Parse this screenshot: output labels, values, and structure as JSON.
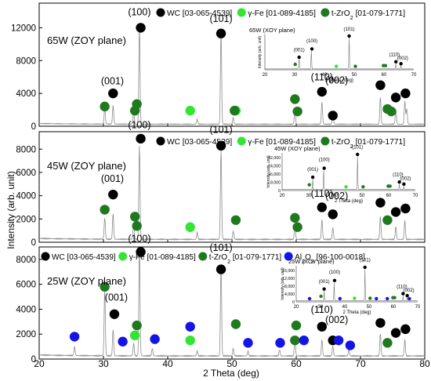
{
  "figure": {
    "ylabel": "Intensity (arb. unit)",
    "xlabel": "2 Theta (deg)",
    "xticks": [
      "20",
      "30",
      "40",
      "50",
      "60",
      "70",
      "80"
    ]
  },
  "colors": {
    "wc": "#000000",
    "fe": "#33e533",
    "zro2": "#1f7a1f",
    "al2o3": "#1414e6",
    "trace": "#8c8c8c",
    "axis": "#000000"
  },
  "chart_data": [
    {
      "type": "line",
      "title": "65W (ZOY plane)",
      "xlabel": "2 Theta (deg)",
      "ylabel": "Intensity (arb. unit)",
      "xlim": [
        20,
        80
      ],
      "ylim": [
        0,
        15000
      ],
      "yticks": [
        "0",
        "4000",
        "8000",
        "12000"
      ],
      "legend": [
        {
          "marker": "wc",
          "text": "WC [03-065-4539]"
        },
        {
          "marker": "fe",
          "text": "γ-Fe [01-089-4185]"
        },
        {
          "marker": "zro2",
          "text": "t-ZrO2 [01-079-1771]"
        }
      ],
      "peak_labels": [
        {
          "text": "(100)",
          "x": 35.6,
          "y": 13500
        },
        {
          "text": "(101)",
          "x": 48.3,
          "y": 12700
        },
        {
          "text": "(001)",
          "x": 31.4,
          "y": 5100
        },
        {
          "text": "(110)",
          "x": 64.0,
          "y": 5600
        },
        {
          "text": "(002)",
          "x": 66.3,
          "y": 5200
        }
      ],
      "series": [
        {
          "type": "pattern",
          "peaks": [
            [
              30.2,
              1900
            ],
            [
              31.5,
              2300
            ],
            [
              34.7,
              1600
            ],
            [
              35.6,
              12000
            ],
            [
              44.6,
              600
            ],
            [
              48.3,
              11000
            ],
            [
              50.2,
              800
            ],
            [
              59.8,
              1700
            ],
            [
              64.0,
              2700
            ],
            [
              65.7,
              1400
            ],
            [
              73.1,
              3300
            ],
            [
              75.5,
              1800
            ],
            [
              76.9,
              2800
            ],
            [
              77.2,
              1900
            ]
          ]
        },
        {
          "marker": "wc",
          "points": [
            [
              31.5,
              4000
            ],
            [
              35.8,
              12000
            ],
            [
              48.3,
              11300
            ],
            [
              64.0,
              4200
            ],
            [
              65.7,
              1300
            ],
            [
              73.1,
              5000
            ],
            [
              75.5,
              3500
            ],
            [
              77.0,
              4000
            ]
          ]
        },
        {
          "marker": "fe",
          "points": [
            [
              43.5,
              1900
            ],
            [
              50.6,
              1900
            ]
          ]
        },
        {
          "marker": "zro2",
          "points": [
            [
              30.2,
              2400
            ],
            [
              34.9,
              1900
            ],
            [
              35.2,
              2700
            ],
            [
              50.4,
              1900
            ],
            [
              59.8,
              3300
            ],
            [
              60.2,
              1800
            ],
            [
              74.2,
              2100
            ],
            [
              74.8,
              1800
            ]
          ]
        }
      ],
      "inset": {
        "title": "65W (XOY plane)",
        "xlabel": "2 Theta (deg)",
        "ylabel": "Intensity (arb. unit)",
        "xlim": [
          20,
          70
        ],
        "yticks": [],
        "xticks": [
          "20",
          "30",
          "40",
          "50",
          "60",
          "70"
        ],
        "peak_labels": [
          "(001)",
          "(100)",
          "(101)",
          "(110)",
          "(002)"
        ]
      }
    },
    {
      "type": "line",
      "title": "45W (ZOY plane)",
      "xlabel": "2 Theta (deg)",
      "ylabel": "Intensity (arb. unit)",
      "xlim": [
        20,
        80
      ],
      "ylim": [
        0,
        9500
      ],
      "yticks": [
        "0",
        "2000",
        "4000",
        "6000",
        "8000"
      ],
      "legend": [
        {
          "marker": "wc",
          "text": "WC [03-065-4539]"
        },
        {
          "marker": "fe",
          "text": "γ-Fe [01-089-4185]"
        },
        {
          "marker": "zro2",
          "text": "t-ZrO2 [01-079-1771]"
        }
      ],
      "peak_labels": [
        {
          "text": "(100)",
          "x": 35.6,
          "y": 9800
        },
        {
          "text": "(101)",
          "x": 48.3,
          "y": 9400
        },
        {
          "text": "(001)",
          "x": 31.4,
          "y": 5200
        },
        {
          "text": "(110)",
          "x": 64.0,
          "y": 3900
        },
        {
          "text": "(002)",
          "x": 66.3,
          "y": 3700
        }
      ],
      "series": [
        {
          "type": "pattern",
          "peaks": [
            [
              30.2,
              1800
            ],
            [
              31.5,
              2200
            ],
            [
              34.7,
              1300
            ],
            [
              35.6,
              8000
            ],
            [
              44.6,
              600
            ],
            [
              48.3,
              7600
            ],
            [
              50.2,
              700
            ],
            [
              59.8,
              1200
            ],
            [
              64.0,
              1700
            ],
            [
              65.7,
              1000
            ],
            [
              73.1,
              2000
            ],
            [
              75.5,
              1100
            ],
            [
              76.9,
              1600
            ]
          ]
        },
        {
          "marker": "wc",
          "points": [
            [
              31.5,
              4100
            ],
            [
              35.8,
              8900
            ],
            [
              48.3,
              8300
            ],
            [
              64.0,
              3000
            ],
            [
              65.7,
              2400
            ],
            [
              73.1,
              3400
            ],
            [
              75.5,
              2600
            ],
            [
              77.0,
              2900
            ]
          ]
        },
        {
          "marker": "fe",
          "points": [
            [
              43.5,
              1300
            ]
          ]
        },
        {
          "marker": "zro2",
          "points": [
            [
              30.2,
              2800
            ],
            [
              34.9,
              2200
            ],
            [
              35.2,
              1400
            ],
            [
              50.6,
              1900
            ],
            [
              59.8,
              2100
            ],
            [
              60.2,
              1300
            ],
            [
              74.2,
              1900
            ]
          ]
        }
      ],
      "inset": {
        "title": "45W (XOY plane)",
        "xlabel": "2 Theta (deg)",
        "ylabel": "Intensity (arb. unit)",
        "xlim": [
          20,
          70
        ],
        "yticks": [
          "0",
          "8,000",
          "16,000",
          "24,000",
          "32,000"
        ],
        "xticks": [
          "20",
          "30",
          "40",
          "50",
          "60",
          "70"
        ],
        "peak_labels": [
          "(001)",
          "(100)",
          "(101)",
          "(110)",
          "(002)"
        ]
      }
    },
    {
      "type": "line",
      "title": "25W (ZOY plane)",
      "xlabel": "2 Theta (deg)",
      "ylabel": "Intensity (arb. unit)",
      "xlim": [
        20,
        80
      ],
      "ylim": [
        0,
        9000
      ],
      "yticks": [
        "0",
        "2000",
        "4000",
        "6000",
        "8000"
      ],
      "legend": [
        {
          "marker": "wc",
          "text": "WC [03-065-4539]"
        },
        {
          "marker": "fe",
          "text": "γ-Fe [01-089-4185]"
        },
        {
          "marker": "zro2",
          "text": "t-ZrO2 [01-079-1771]"
        },
        {
          "marker": "al2o3",
          "text": "Al2O3 [96-100-0018]"
        }
      ],
      "peak_labels": [
        {
          "text": "(100)",
          "x": 35.6,
          "y": 9400
        },
        {
          "text": "(101)",
          "x": 48.3,
          "y": 8700
        },
        {
          "text": "(001)",
          "x": 32.0,
          "y": 4700
        },
        {
          "text": "(110)",
          "x": 64.0,
          "y": 3700
        },
        {
          "text": "(002)",
          "x": 66.3,
          "y": 2900
        }
      ],
      "series": [
        {
          "type": "pattern",
          "peaks": [
            [
              25.5,
              700
            ],
            [
              30.2,
              5200
            ],
            [
              31.5,
              2100
            ],
            [
              34.7,
              1000
            ],
            [
              35.6,
              8600
            ],
            [
              37.6,
              600
            ],
            [
              44.6,
              400
            ],
            [
              48.3,
              7000
            ],
            [
              50.2,
              600
            ],
            [
              52.5,
              400
            ],
            [
              57.4,
              500
            ],
            [
              59.8,
              1400
            ],
            [
              64.0,
              1300
            ],
            [
              65.7,
              800
            ],
            [
              68.2,
              500
            ],
            [
              73.1,
              1800
            ],
            [
              76.9,
              1300
            ]
          ]
        },
        {
          "marker": "wc",
          "points": [
            [
              31.7,
              3600
            ],
            [
              35.8,
              8600
            ],
            [
              48.3,
              7200
            ],
            [
              64.0,
              2600
            ],
            [
              65.7,
              1500
            ],
            [
              73.1,
              2900
            ],
            [
              75.5,
              2100
            ],
            [
              77.0,
              2400
            ]
          ]
        },
        {
          "marker": "fe",
          "points": [
            [
              34.9,
              1900
            ],
            [
              43.5,
              1500
            ]
          ]
        },
        {
          "marker": "zro2",
          "points": [
            [
              30.2,
              5800
            ],
            [
              35.2,
              2700
            ],
            [
              50.6,
              2800
            ],
            [
              59.8,
              1500
            ],
            [
              60.0,
              2700
            ],
            [
              74.2,
              1300
            ]
          ]
        },
        {
          "marker": "al2o3",
          "points": [
            [
              25.5,
              1800
            ],
            [
              33.0,
              1400
            ],
            [
              38.0,
              1600
            ],
            [
              43.5,
              2600
            ],
            [
              52.5,
              1300
            ],
            [
              57.5,
              1300
            ],
            [
              61.2,
              1500
            ],
            [
              66.6,
              1500
            ],
            [
              68.4,
              1100
            ]
          ]
        }
      ],
      "inset": {
        "title": "25W (XOY plane)",
        "xlabel": "2 Theta (deg)",
        "ylabel": "Intensity (arb. unit)",
        "xlim": [
          20,
          70
        ],
        "yticks": [
          "0",
          "4,000",
          "8,000",
          "12,000",
          "16,000"
        ],
        "xticks": [
          "20",
          "30",
          "40",
          "50",
          "60",
          "70"
        ],
        "peak_labels": [
          "(001)",
          "(100)",
          "(101)",
          "(110)",
          "(002)"
        ]
      }
    }
  ]
}
